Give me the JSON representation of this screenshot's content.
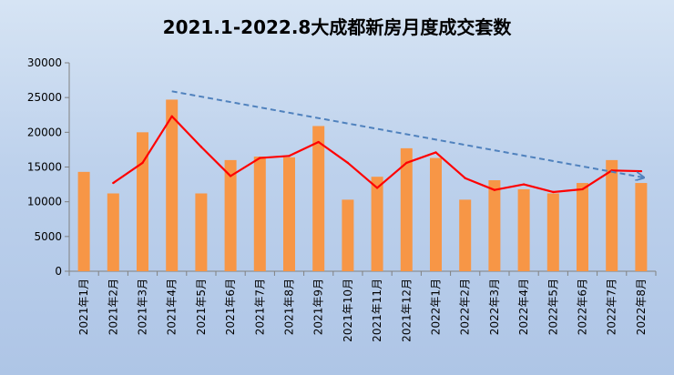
{
  "chart_data": {
    "type": "bar",
    "title": "2021.1-2022.8大成都新房月度成交套数",
    "categories": [
      "2021年1月",
      "2021年2月",
      "2021年3月",
      "2021年4月",
      "2021年5月",
      "2021年6月",
      "2021年7月",
      "2021年8月",
      "2021年9月",
      "2021年10月",
      "2021年11月",
      "2021年12月",
      "2022年1月",
      "2022年2月",
      "2022年3月",
      "2022年4月",
      "2022年5月",
      "2022年6月",
      "2022年7月",
      "2022年8月"
    ],
    "series": [
      {
        "type": "bar",
        "color": "#f79646",
        "values": [
          14300,
          11200,
          20000,
          24700,
          11200,
          16000,
          16500,
          16400,
          20900,
          10300,
          13600,
          17700,
          16300,
          10300,
          13100,
          11800,
          11200,
          12700,
          16000,
          12700
        ]
      },
      {
        "type": "line",
        "color": "#ff0000",
        "values": [
          null,
          12700,
          15600,
          22300,
          17900,
          13700,
          16300,
          16600,
          18600,
          15600,
          12000,
          15600,
          17100,
          13400,
          11700,
          12500,
          11400,
          11800,
          14500,
          14400
        ]
      }
    ],
    "trendline": {
      "style": "dashed-arrow",
      "color": "#4f81bd",
      "from": {
        "x": "2021年4月",
        "y": 25900
      },
      "to": {
        "x": "2022年8月",
        "y": 13500
      }
    },
    "ylim": [
      0,
      30000
    ],
    "yticks": [
      0,
      5000,
      10000,
      15000,
      20000,
      25000,
      30000
    ],
    "xlabel": "",
    "ylabel": "",
    "grid": false,
    "legend": "none"
  }
}
